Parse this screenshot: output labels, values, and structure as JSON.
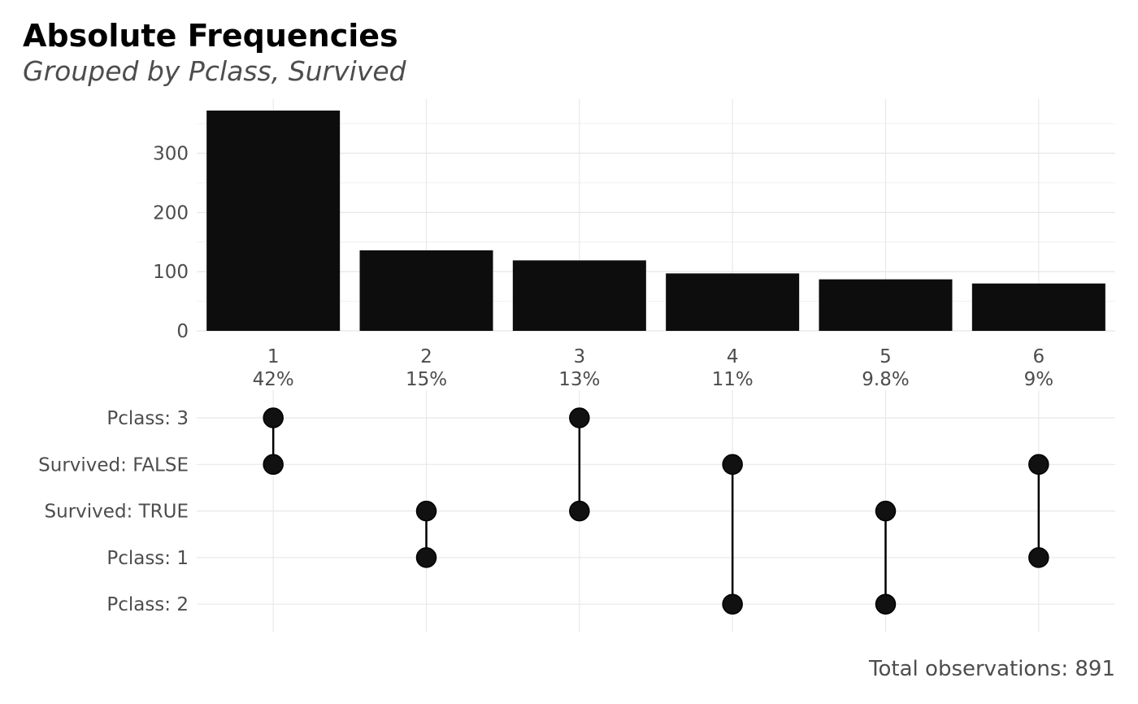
{
  "title": "Absolute Frequencies",
  "subtitle": "Grouped by Pclass, Survived",
  "caption": "Total observations: 891",
  "chart_data": {
    "type": "bar",
    "categories": [
      "1",
      "2",
      "3",
      "4",
      "5",
      "6"
    ],
    "values": [
      372,
      136,
      119,
      97,
      87,
      80
    ],
    "percent_labels": [
      "42%",
      "15%",
      "13%",
      "11%",
      "9.8%",
      "9%"
    ],
    "ylim": [
      0,
      372
    ],
    "yticks": [
      0,
      100,
      200,
      300
    ],
    "bar_color": "#0d0d0d",
    "grid": true,
    "matrix": {
      "rows": [
        "Pclass: 3",
        "Survived: FALSE",
        "Survived: TRUE",
        "Pclass: 1",
        "Pclass: 2"
      ],
      "combinations": [
        [
          "Pclass: 3",
          "Survived: FALSE"
        ],
        [
          "Survived: TRUE",
          "Pclass: 1"
        ],
        [
          "Pclass: 3",
          "Survived: TRUE"
        ],
        [
          "Survived: FALSE",
          "Pclass: 2"
        ],
        [
          "Survived: TRUE",
          "Pclass: 2"
        ],
        [
          "Survived: FALSE",
          "Pclass: 1"
        ]
      ],
      "dot_color": "#000000"
    }
  }
}
